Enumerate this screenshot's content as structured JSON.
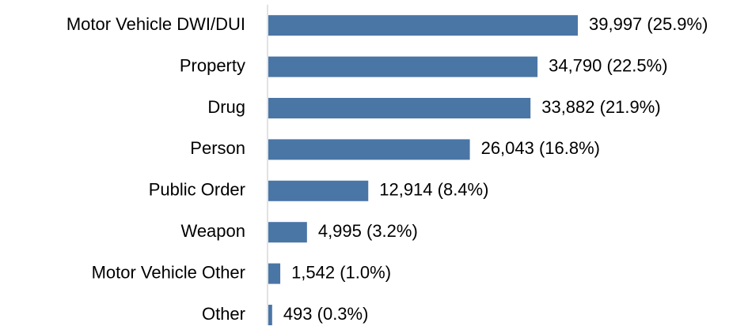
{
  "chart_data": {
    "type": "barh",
    "categories": [
      "Motor Vehicle DWI/DUI",
      "Property",
      "Drug",
      "Person",
      "Public Order",
      "Weapon",
      "Motor Vehicle Other",
      "Other"
    ],
    "values": [
      39997,
      34790,
      33882,
      26043,
      12914,
      4995,
      1542,
      493
    ],
    "value_labels": [
      "39,997 (25.9%)",
      "34,790 (22.5%)",
      "33,882 (21.9%)",
      "26,043 (16.8%)",
      "12,914 (8.4%)",
      "4,995 (3.2%)",
      "1,542 (1.0%)",
      "493 (0.3%)"
    ],
    "color": "#4a76a6"
  }
}
